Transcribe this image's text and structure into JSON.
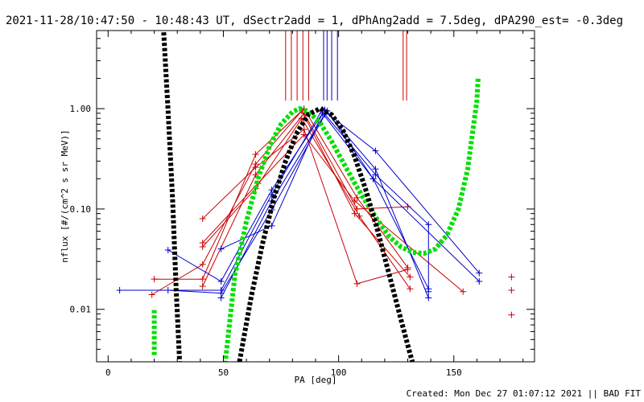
{
  "chart_data": {
    "type": "scatter",
    "title": "2021-11-28/10:47:50 - 10:48:43 UT, dSectr2add = 1, dPhAng2add = 7.5deg, dPA290_est= -0.3deg",
    "xlabel": "PA [deg]",
    "ylabel": "nflux [#/(cm^2 s sr MeV)]",
    "xlim": [
      -5,
      185
    ],
    "ylim_log": [
      0.003,
      6.0
    ],
    "yscale": "log",
    "x_ticks": [
      0,
      50,
      100,
      150
    ],
    "x_tick_labels": [
      "0",
      "50",
      "100",
      "150"
    ],
    "y_ticks": [
      0.01,
      0.1,
      1.0
    ],
    "y_tick_labels": [
      "0.01",
      "0.10",
      "1.00"
    ],
    "footer": "Created: Mon Dec 27 01:07:12 2021 || BAD FIT",
    "vertical_markers": [
      {
        "color": "#cc0000",
        "x": [
          77,
          79.5,
          82,
          84.5,
          87,
          128,
          129.5
        ]
      },
      {
        "color": "#0000cc",
        "x": [
          93.5,
          95,
          97,
          99.5
        ]
      }
    ],
    "fits": [
      {
        "name": "green fit",
        "color": "#00e000",
        "type": "curve",
        "points": [
          [
            20,
            0.0035
          ],
          [
            20,
            0.01
          ],
          [
            50,
            0.002
          ],
          [
            55,
            0.022
          ],
          [
            60,
            0.075
          ],
          [
            65,
            0.2
          ],
          [
            70,
            0.42
          ],
          [
            75,
            0.7
          ],
          [
            80,
            0.93
          ],
          [
            83,
            1.0
          ],
          [
            87,
            0.93
          ],
          [
            92,
            0.72
          ],
          [
            97,
            0.47
          ],
          [
            102,
            0.29
          ],
          [
            107,
            0.18
          ],
          [
            112,
            0.116
          ],
          [
            117,
            0.077
          ],
          [
            122,
            0.053
          ],
          [
            127,
            0.042
          ],
          [
            132,
            0.037
          ],
          [
            137,
            0.036
          ],
          [
            142,
            0.04
          ],
          [
            147,
            0.055
          ],
          [
            152,
            0.1
          ],
          [
            156,
            0.25
          ],
          [
            158,
            0.55
          ],
          [
            160,
            1.2
          ],
          [
            160.5,
            2.0
          ]
        ]
      },
      {
        "name": "black fit",
        "color": "#000000",
        "type": "curve",
        "points": [
          [
            24,
            6.5
          ],
          [
            26,
            0.95
          ],
          [
            28,
            0.12
          ],
          [
            29.5,
            0.016
          ],
          [
            31,
            0.003
          ],
          [
            57,
            0.003
          ],
          [
            62,
            0.013
          ],
          [
            67,
            0.045
          ],
          [
            72,
            0.13
          ],
          [
            77,
            0.3
          ],
          [
            82,
            0.58
          ],
          [
            87,
            0.88
          ],
          [
            92,
            1.0
          ],
          [
            97,
            0.87
          ],
          [
            102,
            0.6
          ],
          [
            107,
            0.33
          ],
          [
            112,
            0.15
          ],
          [
            117,
            0.06
          ],
          [
            122,
            0.022
          ],
          [
            127,
            0.008
          ],
          [
            131,
            0.0036
          ],
          [
            132,
            0.003
          ]
        ]
      }
    ],
    "series": [
      {
        "name": "red data",
        "color": "#cc0000",
        "lines": [
          [
            [
              20,
              0.02
            ],
            [
              41,
              0.02
            ],
            [
              64,
              0.35
            ],
            [
              85,
              1.0
            ],
            [
              108,
              0.13
            ],
            [
              130,
              0.026
            ]
          ],
          [
            [
              19,
              0.014
            ],
            [
              41,
              0.028
            ],
            [
              64,
              0.28
            ],
            [
              84,
              0.95
            ],
            [
              107,
              0.09
            ],
            [
              131,
              0.021
            ]
          ],
          [
            [
              41,
              0.017
            ],
            [
              64,
              0.22
            ],
            [
              85,
              0.9
            ],
            [
              108,
              0.1
            ],
            [
              130,
              0.105
            ]
          ],
          [
            [
              41,
              0.042
            ],
            [
              64,
              0.16
            ],
            [
              84,
              0.8
            ],
            [
              109,
              0.085
            ],
            [
              131,
              0.016
            ]
          ],
          [
            [
              41,
              0.08
            ],
            [
              64,
              0.26
            ],
            [
              85,
              0.62
            ],
            [
              108,
              0.018
            ],
            [
              130,
              0.025
            ]
          ],
          [
            [
              41,
              0.046
            ],
            [
              65,
              0.18
            ],
            [
              85,
              0.55
            ],
            [
              107,
              0.12
            ],
            [
              154,
              0.015
            ]
          ]
        ],
        "extra_points": [
          [
            175,
            0.021
          ],
          [
            175,
            0.0155
          ],
          [
            175,
            0.0088
          ]
        ]
      },
      {
        "name": "blue data",
        "color": "#0000cc",
        "lines": [
          [
            [
              5,
              0.0155
            ],
            [
              49,
              0.0155
            ],
            [
              71,
              0.14
            ],
            [
              93,
              0.98
            ],
            [
              116,
              0.38
            ],
            [
              161,
              0.023
            ]
          ],
          [
            [
              26,
              0.039
            ],
            [
              49,
              0.019
            ],
            [
              71,
              0.155
            ],
            [
              94,
              0.97
            ],
            [
              116,
              0.25
            ],
            [
              139,
              0.013
            ]
          ],
          [
            [
              26,
              0.0155
            ],
            [
              49,
              0.0145
            ],
            [
              71,
              0.098
            ],
            [
              95,
              0.95
            ],
            [
              115,
              0.2
            ],
            [
              139,
              0.016
            ]
          ],
          [
            [
              49,
              0.04
            ],
            [
              71,
              0.068
            ],
            [
              93,
              0.9
            ],
            [
              115,
              0.2
            ],
            [
              161,
              0.019
            ]
          ],
          [
            [
              49,
              0.013
            ],
            [
              71,
              0.12
            ],
            [
              94,
              0.88
            ],
            [
              116,
              0.22
            ],
            [
              139,
              0.07
            ],
            [
              139,
              0.015
            ]
          ]
        ]
      }
    ]
  }
}
